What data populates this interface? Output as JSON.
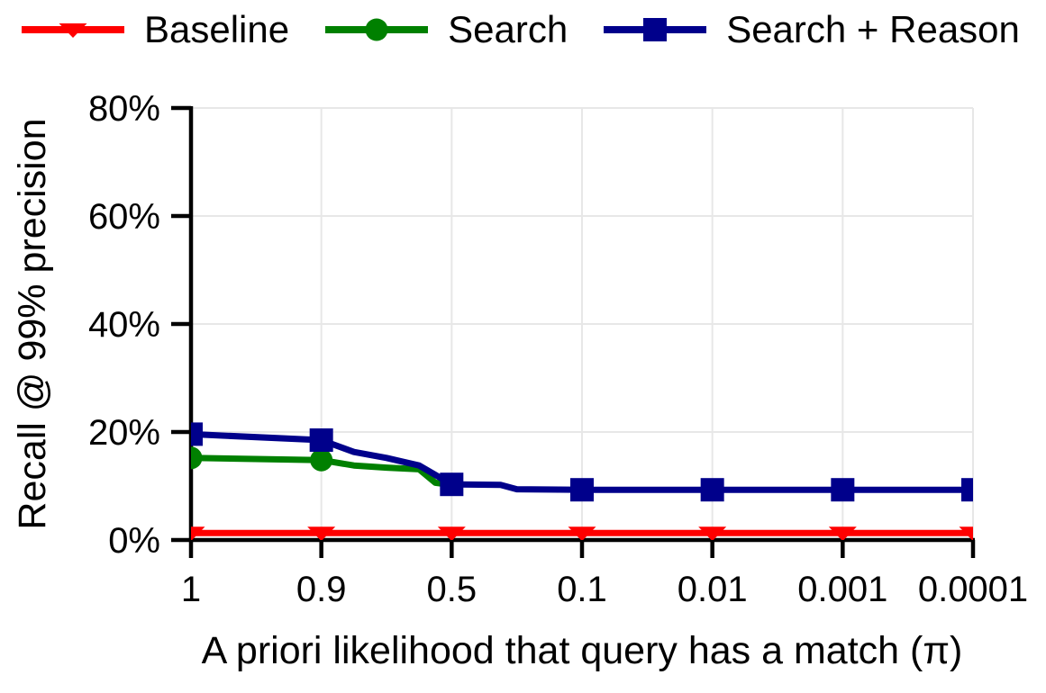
{
  "chart_data": {
    "type": "line",
    "title": "",
    "xlabel": "A priori likelihood that query has a match (π)",
    "ylabel": "Recall @ 99% precision",
    "x_ticks": [
      "1",
      "0.9",
      "0.5",
      "0.1",
      "0.01",
      "0.001",
      "0.0001"
    ],
    "x_tick_values": [
      1,
      0.9,
      0.5,
      0.1,
      0.01,
      0.001,
      0.0001
    ],
    "y_ticks": [
      "0%",
      "20%",
      "40%",
      "60%",
      "80%"
    ],
    "y_tick_values": [
      0,
      20,
      40,
      60,
      80
    ],
    "ylim": [
      0,
      80
    ],
    "grid": true,
    "grid_color": "#e7e7e7",
    "axis_color": "#000000",
    "background_color": "#ffffff",
    "legend_position": "top",
    "series": [
      {
        "name": "Baseline",
        "color": "#ff0000",
        "marker": "triangle-down",
        "points": [
          [
            1,
            1.3
          ],
          [
            0.9,
            1.3
          ],
          [
            0.5,
            1.3
          ],
          [
            0.1,
            1.3
          ],
          [
            0.01,
            1.3
          ],
          [
            0.001,
            1.3
          ],
          [
            0.0001,
            1.3
          ]
        ],
        "marker_x": [
          1,
          0.9,
          0.5,
          0.1,
          0.01,
          0.001,
          0.0001
        ]
      },
      {
        "name": "Search",
        "color": "#008000",
        "marker": "circle",
        "points": [
          [
            1,
            15.2
          ],
          [
            0.9,
            14.8
          ],
          [
            0.8,
            13.8
          ],
          [
            0.7,
            13.4
          ],
          [
            0.6,
            13.1
          ],
          [
            0.55,
            10.6
          ],
          [
            0.5,
            10.2
          ]
        ],
        "marker_x": [
          1,
          0.9
        ]
      },
      {
        "name": "Search + Reason",
        "color": "#00008b",
        "marker": "square",
        "points": [
          [
            1,
            19.6
          ],
          [
            0.9,
            18.5
          ],
          [
            0.8,
            16.3
          ],
          [
            0.7,
            15.2
          ],
          [
            0.6,
            13.8
          ],
          [
            0.5,
            10.3
          ],
          [
            0.35,
            10.2
          ],
          [
            0.3,
            9.4
          ],
          [
            0.1,
            9.3
          ],
          [
            0.01,
            9.3
          ],
          [
            0.001,
            9.3
          ],
          [
            0.0001,
            9.3
          ]
        ],
        "marker_x": [
          1,
          0.9,
          0.5,
          0.1,
          0.01,
          0.001,
          0.0001
        ]
      }
    ]
  }
}
